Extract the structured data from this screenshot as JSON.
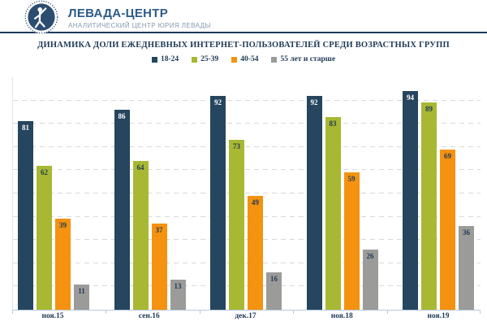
{
  "header": {
    "brand": "ЛЕВАДА-ЦЕНТР",
    "subtitle": "АНАЛИТИЧЕСКИЙ ЦЕНТР ЮРИЯ ЛЕВАДЫ",
    "logo_icon": "levada-emblem-icon"
  },
  "colors": {
    "brand_text": "#2d5b88",
    "divider": "#1e3a5f",
    "title_text": "#1f3a57",
    "gridline": "#d9d9d9",
    "axis": "#b7cbde",
    "emblem": "#2c4d71"
  },
  "chart_data": {
    "type": "bar",
    "title": "ДИНАМИКА ДОЛИ ЕЖЕДНЕВНЫХ ИНТЕРНЕТ-ПОЛЬЗОВАТЕЛЕЙ СРЕДИ ВОЗРАСТНЫХ ГРУПП",
    "categories": [
      "ноя.15",
      "сен.16",
      "дек.17",
      "ноя.18",
      "ноя.19"
    ],
    "series": [
      {
        "name": "18-24",
        "color": "#26455e",
        "label_color": "#ffffff",
        "values": [
          81,
          86,
          92,
          92,
          94
        ]
      },
      {
        "name": "25-39",
        "color": "#a8b832",
        "label_color": "#1f3a57",
        "values": [
          62,
          64,
          73,
          83,
          89
        ]
      },
      {
        "name": "40-54",
        "color": "#f5920f",
        "label_color": "#1f3a57",
        "values": [
          39,
          37,
          49,
          59,
          69
        ]
      },
      {
        "name": "55 лет и старше",
        "color": "#9b9b99",
        "label_color": "#1f3a57",
        "values": [
          11,
          13,
          16,
          26,
          36
        ]
      }
    ],
    "xlabel": "",
    "ylabel": "",
    "ylim": [
      0,
      100
    ],
    "gridline_step": 10,
    "grid": "dashed-horizontal",
    "legend_position": "top",
    "value_labels": "inside-top",
    "y_axis_tick_labels_visible": false
  }
}
